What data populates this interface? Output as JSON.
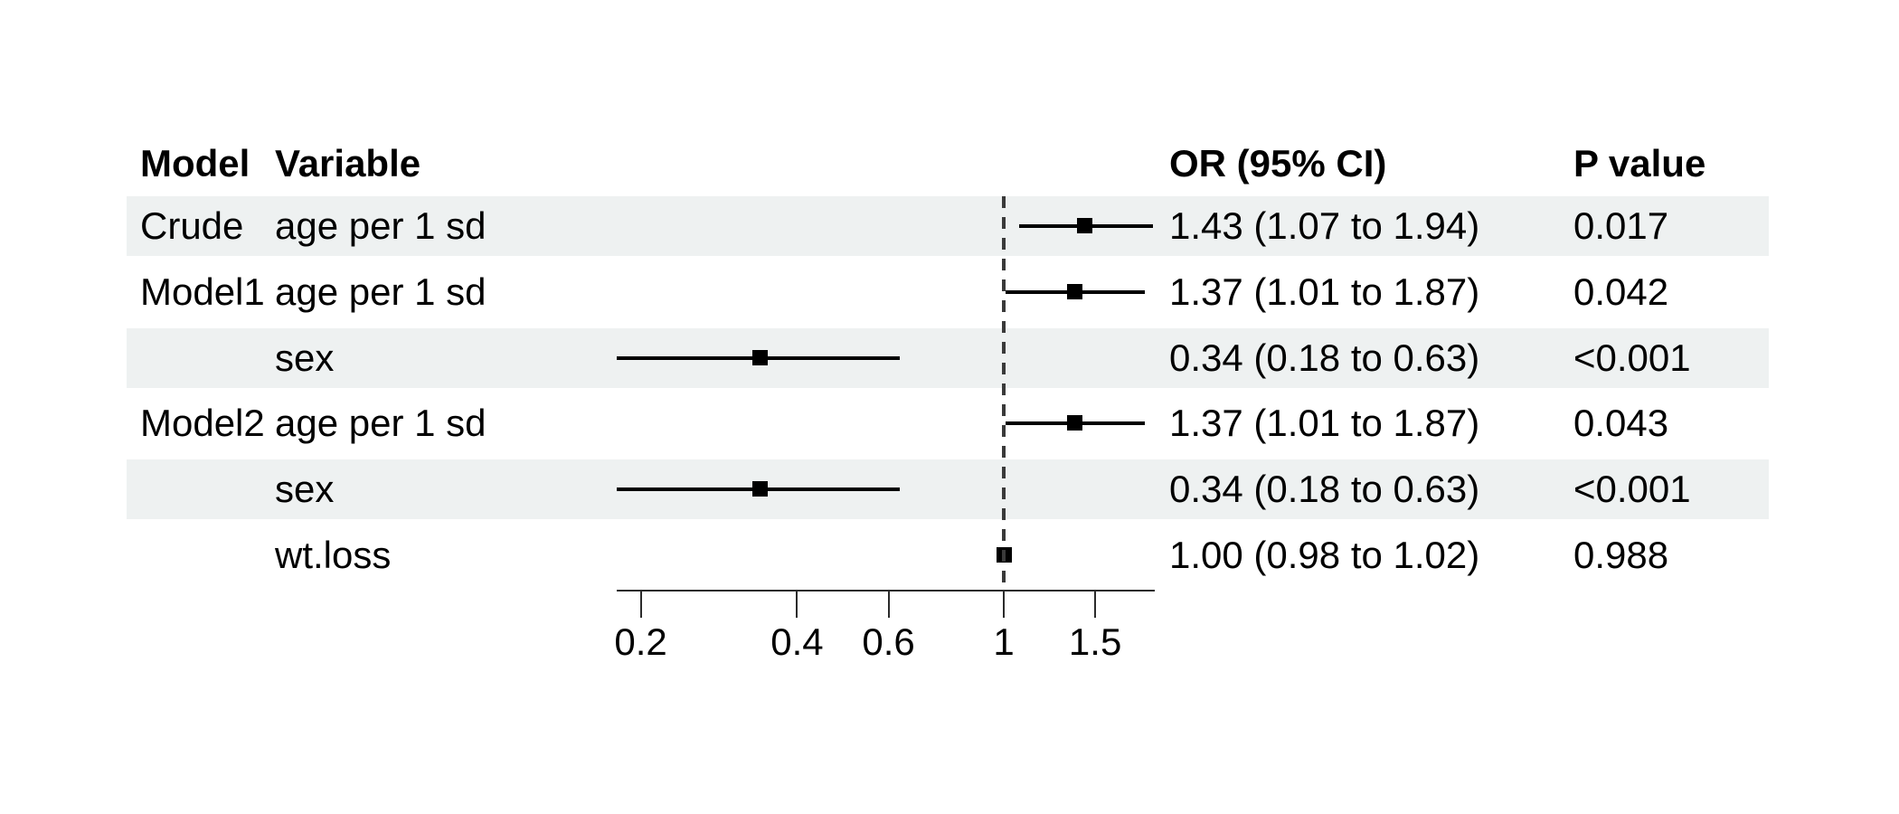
{
  "table": {
    "headers": {
      "model": "Model",
      "variable": "Variable",
      "or_ci": "OR (95% CI)",
      "p_value": "P value"
    },
    "rows": [
      {
        "model": "Crude",
        "variable": "age per 1 sd",
        "or_ci": "1.43 (1.07 to 1.94)",
        "p_value": "0.017",
        "shaded": true
      },
      {
        "model": "Model1",
        "variable": "age per 1 sd",
        "or_ci": "1.37 (1.01 to 1.87)",
        "p_value": "0.042",
        "shaded": false
      },
      {
        "model": "",
        "variable": "sex",
        "or_ci": "0.34 (0.18 to 0.63)",
        "p_value": "<0.001",
        "shaded": true
      },
      {
        "model": "Model2",
        "variable": "age per 1 sd",
        "or_ci": "1.37 (1.01 to 1.87)",
        "p_value": "0.043",
        "shaded": false
      },
      {
        "model": "",
        "variable": "sex",
        "or_ci": "0.34 (0.18 to 0.63)",
        "p_value": "<0.001",
        "shaded": true
      },
      {
        "model": "",
        "variable": "wt.loss",
        "or_ci": "1.00 (0.98 to 1.02)",
        "p_value": "0.988",
        "shaded": false
      }
    ]
  },
  "chart_data": {
    "type": "forest",
    "x_scale": "log",
    "x_ticks": [
      "0.2",
      "0.4",
      "0.6",
      "1",
      "1.5"
    ],
    "x_range": [
      0.18,
      1.95
    ],
    "reference_value": 1,
    "legend_position": "none",
    "grid": false,
    "series": [
      {
        "label": "Crude age per 1 sd",
        "est": 1.43,
        "lower": 1.07,
        "upper": 1.94
      },
      {
        "label": "Model1 age per 1 sd",
        "est": 1.37,
        "lower": 1.01,
        "upper": 1.87
      },
      {
        "label": "Model1 sex",
        "est": 0.34,
        "lower": 0.18,
        "upper": 0.63
      },
      {
        "label": "Model2 age per 1 sd",
        "est": 1.37,
        "lower": 1.01,
        "upper": 1.87
      },
      {
        "label": "Model2 sex",
        "est": 0.34,
        "lower": 0.18,
        "upper": 0.63
      },
      {
        "label": "Model2 wt.loss",
        "est": 1.0,
        "lower": 0.98,
        "upper": 1.02
      }
    ]
  }
}
